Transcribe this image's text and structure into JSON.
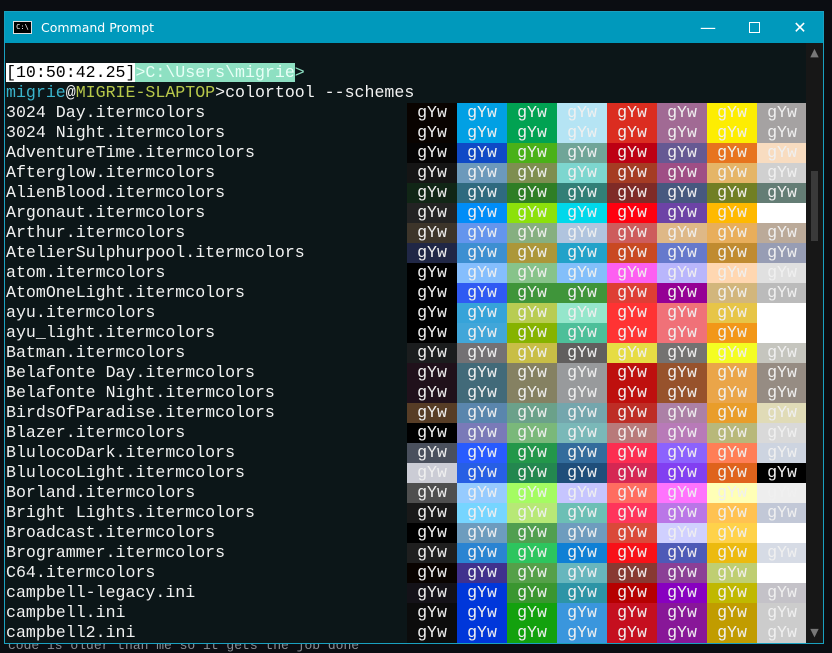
{
  "window": {
    "title": "Command Prompt",
    "icon": "cmd-icon",
    "accent": "#0099bc"
  },
  "prompt": {
    "time": "[10:50:42.25]",
    "path": ">C:\\Users\\migrie",
    "caret": ">",
    "user": "migrie",
    "at": "@",
    "host": "MIGRIE-SLAPTOP",
    "command": ">colortool --schemes"
  },
  "sample_text": "gYw",
  "schemes": [
    {
      "name": "3024 Day.itermcolors",
      "colors": [
        "#090300",
        "#01a0e4",
        "#01a252",
        "#b5e4f4",
        "#db2d20",
        "#a16a94",
        "#fded02",
        "#a5a2a2"
      ]
    },
    {
      "name": "3024 Night.itermcolors",
      "colors": [
        "#090300",
        "#01a0e4",
        "#01a252",
        "#b5e4f4",
        "#db2d20",
        "#a16a94",
        "#fded02",
        "#a5a2a2"
      ]
    },
    {
      "name": "AdventureTime.itermcolors",
      "colors": [
        "#050404",
        "#0f4ac6",
        "#4ab118",
        "#70a598",
        "#bd0013",
        "#665993",
        "#e7741e",
        "#f8dcc0"
      ]
    },
    {
      "name": "Afterglow.itermcolors",
      "colors": [
        "#151515",
        "#6c99bb",
        "#7e8e50",
        "#7dd6cf",
        "#a53c23",
        "#9f4e85",
        "#e5b567",
        "#d0d0d0"
      ]
    },
    {
      "name": "AlienBlood.itermcolors",
      "colors": [
        "#112616",
        "#2f6a7f",
        "#2f7e25",
        "#327f77",
        "#7f2b27",
        "#47587f",
        "#717f24",
        "#647d75"
      ]
    },
    {
      "name": "Argonaut.itermcolors",
      "colors": [
        "#232323",
        "#008df8",
        "#8ce10b",
        "#00d8eb",
        "#ff000f",
        "#6d43a6",
        "#ffb900",
        "#ffffff"
      ]
    },
    {
      "name": "Arthur.itermcolors",
      "colors": [
        "#3d352a",
        "#6495ed",
        "#86af80",
        "#b0c4de",
        "#cd5c5c",
        "#deb887",
        "#e8ae5b",
        "#bbaa99"
      ]
    },
    {
      "name": "AtelierSulphurpool.itermcolors",
      "colors": [
        "#202746",
        "#3d8fd1",
        "#ac9739",
        "#22a2c9",
        "#c94922",
        "#6679cc",
        "#c08b30",
        "#979db4"
      ]
    },
    {
      "name": "atom.itermcolors",
      "colors": [
        "#000000",
        "#85befd",
        "#87c38a",
        "#83bffa",
        "#fd5ff1",
        "#b9b6fc",
        "#ffd7b1",
        "#e0e0e0"
      ]
    },
    {
      "name": "AtomOneLight.itermcolors",
      "colors": [
        "#000000",
        "#2f5af3",
        "#3f953a",
        "#3f953a",
        "#de3e35",
        "#950095",
        "#d2b67c",
        "#bbbbbb"
      ]
    },
    {
      "name": "ayu.itermcolors",
      "colors": [
        "#000000",
        "#36a3d9",
        "#b8cc52",
        "#95e6cb",
        "#ff3333",
        "#f07178",
        "#e7c547",
        "#ffffff"
      ]
    },
    {
      "name": "ayu_light.itermcolors",
      "colors": [
        "#000000",
        "#41a6d9",
        "#86b300",
        "#4dbf99",
        "#ff3333",
        "#f07178",
        "#f29718",
        "#ffffff"
      ]
    },
    {
      "name": "Batman.itermcolors",
      "colors": [
        "#1b1d1e",
        "#737174",
        "#c8be46",
        "#615f5e",
        "#e6dc44",
        "#747271",
        "#f4fd22",
        "#c5c5be"
      ]
    },
    {
      "name": "Belafonte Day.itermcolors",
      "colors": [
        "#20111b",
        "#426a79",
        "#858162",
        "#989a9c",
        "#be100e",
        "#97522c",
        "#eaa549",
        "#968c83"
      ]
    },
    {
      "name": "Belafonte Night.itermcolors",
      "colors": [
        "#20111b",
        "#426a79",
        "#858162",
        "#989a9c",
        "#be100e",
        "#97522c",
        "#eaa549",
        "#968c83"
      ]
    },
    {
      "name": "BirdsOfParadise.itermcolors",
      "colors": [
        "#573d26",
        "#5a86ad",
        "#6ba18a",
        "#74a6ad",
        "#be2d26",
        "#ac80a6",
        "#e99d2a",
        "#e0dbb7"
      ]
    },
    {
      "name": "Blazer.itermcolors",
      "colors": [
        "#000000",
        "#7a7ab8",
        "#7ab87a",
        "#7ab8b8",
        "#b87a7a",
        "#b87ab8",
        "#b8b87a",
        "#d9d9d9"
      ]
    },
    {
      "name": "BlulocoDark.itermcolors",
      "colors": [
        "#4a505d",
        "#285bff",
        "#23974a",
        "#336c9c",
        "#fc2e51",
        "#8c62fd",
        "#ff7e56",
        "#cdd4e0"
      ]
    },
    {
      "name": "BlulocoLight.itermcolors",
      "colors": [
        "#cbccd5",
        "#275fe4",
        "#23874f",
        "#1f4e7a",
        "#d52753",
        "#823ff1",
        "#df631c",
        "#000000"
      ]
    },
    {
      "name": "Borland.itermcolors",
      "colors": [
        "#4f4f4f",
        "#96cbfe",
        "#a4fc62",
        "#c6c5fe",
        "#ff6c60",
        "#ff73fd",
        "#ffffb6",
        "#eeeeee"
      ]
    },
    {
      "name": "Bright Lights.itermcolors",
      "colors": [
        "#191919",
        "#76d5ff",
        "#b7e876",
        "#6cbfb5",
        "#ff355b",
        "#ba76e7",
        "#ffc251",
        "#c2c8d7"
      ]
    },
    {
      "name": "Broadcast.itermcolors",
      "colors": [
        "#000000",
        "#6d9cbe",
        "#519f50",
        "#6e9cbe",
        "#da4939",
        "#d0d0ff",
        "#ffd24a",
        "#ffffff"
      ]
    },
    {
      "name": "Brogrammer.itermcolors",
      "colors": [
        "#1f1f1f",
        "#2a84d2",
        "#2dc55e",
        "#0f80d5",
        "#f81118",
        "#4e5ab7",
        "#ecba0f",
        "#d6dbe5"
      ]
    },
    {
      "name": "C64.itermcolors",
      "colors": [
        "#090300",
        "#40318d",
        "#55a049",
        "#67b6bd",
        "#883932",
        "#8b3f96",
        "#bfce72",
        "#ffffff"
      ]
    },
    {
      "name": "campbell-legacy.ini",
      "colors": [
        "#141218",
        "#0037da",
        "#3a9630",
        "#2d94a6",
        "#b60000",
        "#8800c0",
        "#c0b800",
        "#c4c2c8"
      ]
    },
    {
      "name": "campbell.ini",
      "colors": [
        "#0c0c0c",
        "#0037da",
        "#13a10e",
        "#3a96dd",
        "#c50f1f",
        "#881798",
        "#c19c00",
        "#cccccc"
      ]
    },
    {
      "name": "campbell2.ini",
      "colors": [
        "#0c0c0c",
        "#0037da",
        "#13a10e",
        "#3a96dd",
        "#c50f1f",
        "#881798",
        "#c19c00",
        "#cccccc"
      ]
    }
  ],
  "background_text": "code is older than me so it gets the job done"
}
